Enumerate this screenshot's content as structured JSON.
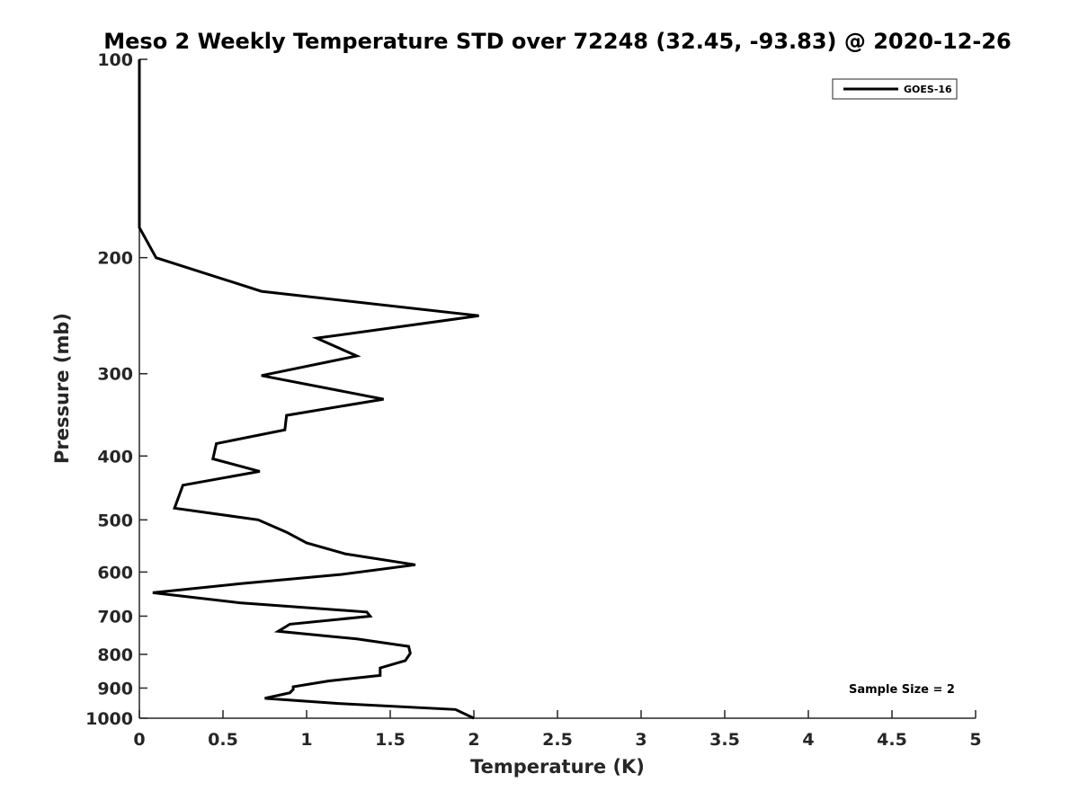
{
  "chart_data": {
    "type": "line",
    "title": "Meso 2 Weekly Temperature STD over 72248 (32.45, -93.83) @ 2020-12-26",
    "xlabel": "Temperature (K)",
    "ylabel": "Pressure (mb)",
    "xlim": [
      0,
      5
    ],
    "ylim": [
      100,
      1000
    ],
    "y_scale": "log",
    "y_reversed": true,
    "x_ticks": [
      "0",
      "0.5",
      "1",
      "1.5",
      "2",
      "2.5",
      "3",
      "3.5",
      "4",
      "4.5",
      "5"
    ],
    "y_ticks": [
      "100",
      "200",
      "300",
      "400",
      "500",
      "600",
      "700",
      "800",
      "900",
      "1000"
    ],
    "grid": false,
    "legend_position": "top-right",
    "annotation": "Sample Size = 2",
    "line_color": "#000000",
    "series": [
      {
        "name": "GOES-16",
        "points": [
          [
            0.0,
            100
          ],
          [
            0.0,
            130
          ],
          [
            0.0,
            160
          ],
          [
            0.0,
            180
          ],
          [
            0.1,
            200
          ],
          [
            0.73,
            225
          ],
          [
            2.03,
            245
          ],
          [
            1.06,
            265
          ],
          [
            1.3,
            282
          ],
          [
            0.73,
            302
          ],
          [
            1.46,
            328
          ],
          [
            0.88,
            347
          ],
          [
            0.87,
            365
          ],
          [
            0.46,
            383
          ],
          [
            0.44,
            404
          ],
          [
            0.72,
            422
          ],
          [
            0.26,
            443
          ],
          [
            0.21,
            480
          ],
          [
            0.71,
            500
          ],
          [
            0.88,
            522
          ],
          [
            1.0,
            542
          ],
          [
            1.23,
            563
          ],
          [
            1.65,
            585
          ],
          [
            1.21,
            605
          ],
          [
            0.6,
            625
          ],
          [
            0.08,
            645
          ],
          [
            0.6,
            668
          ],
          [
            1.36,
            690
          ],
          [
            1.38,
            700
          ],
          [
            0.9,
            720
          ],
          [
            0.83,
            738
          ],
          [
            1.3,
            758
          ],
          [
            1.61,
            778
          ],
          [
            1.62,
            797
          ],
          [
            1.59,
            818
          ],
          [
            1.44,
            839
          ],
          [
            1.44,
            861
          ],
          [
            1.13,
            878
          ],
          [
            0.92,
            896
          ],
          [
            0.92,
            904
          ],
          [
            0.9,
            915
          ],
          [
            0.75,
            933
          ],
          [
            1.2,
            950
          ],
          [
            1.89,
            970
          ],
          [
            2.0,
            1000
          ]
        ]
      }
    ]
  }
}
